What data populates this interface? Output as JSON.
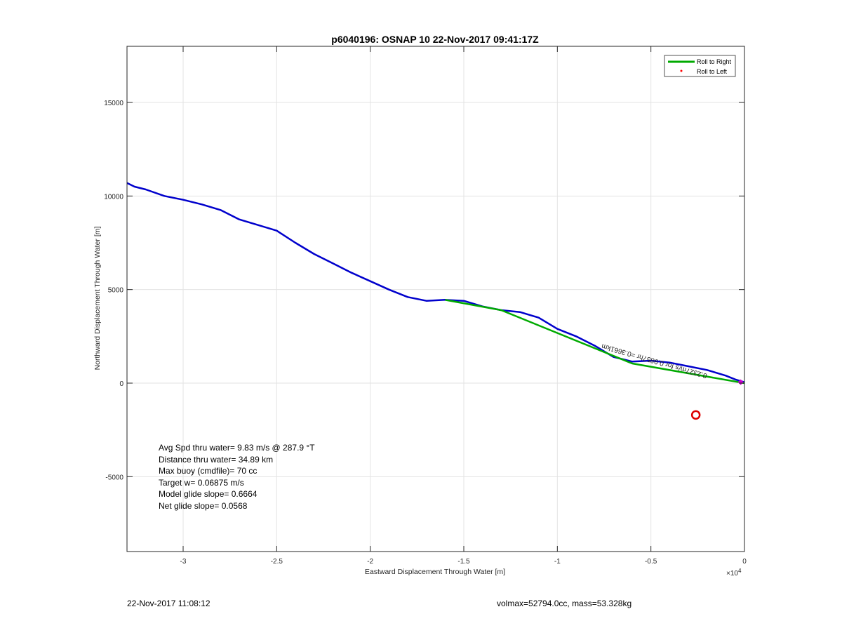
{
  "chart_data": {
    "type": "line",
    "title": "p6040196: OSNAP 10 22-Nov-2017 09:41:17Z",
    "xlabel": "Eastward Displacement Through Water [m]",
    "ylabel": "Northward Displacement Through Water [m]",
    "x_multiplier_label": "×10",
    "x_multiplier_exponent": "4",
    "xlim": [
      -33000,
      0
    ],
    "ylim": [
      -9000,
      18000
    ],
    "xticks": [
      -30000,
      -25000,
      -20000,
      -15000,
      -10000,
      -5000,
      0
    ],
    "xtick_labels": [
      "-3",
      "-2.5",
      "-2",
      "-1.5",
      "-1",
      "-0.5",
      "0"
    ],
    "yticks": [
      -5000,
      0,
      5000,
      10000,
      15000
    ],
    "ytick_labels": [
      "-5000",
      "0",
      "5000",
      "10000",
      "15000"
    ],
    "grid": true,
    "legend": {
      "position": "top-right",
      "entries": [
        {
          "label": "Roll to Right",
          "color": "#00aa00",
          "style": "line"
        },
        {
          "label": "Roll to Left",
          "color": "#ff0000",
          "style": "dot"
        }
      ]
    },
    "series": [
      {
        "color": "#0000cc",
        "points": [
          [
            -33000,
            10700
          ],
          [
            -32600,
            10500
          ],
          [
            -32000,
            10350
          ],
          [
            -31000,
            10000
          ],
          [
            -30000,
            9800
          ],
          [
            -29000,
            9550
          ],
          [
            -28000,
            9250
          ],
          [
            -27000,
            8750
          ],
          [
            -26000,
            8450
          ],
          [
            -25000,
            8150
          ],
          [
            -24000,
            7500
          ],
          [
            -23000,
            6900
          ],
          [
            -22000,
            6400
          ],
          [
            -21000,
            5900
          ],
          [
            -20000,
            5450
          ],
          [
            -19000,
            5000
          ],
          [
            -18000,
            4600
          ],
          [
            -17000,
            4400
          ],
          [
            -16000,
            4450
          ],
          [
            -15000,
            4400
          ],
          [
            -14000,
            4100
          ],
          [
            -13000,
            3900
          ],
          [
            -12000,
            3800
          ],
          [
            -11000,
            3500
          ],
          [
            -10000,
            2900
          ],
          [
            -9000,
            2500
          ],
          [
            -8000,
            2000
          ],
          [
            -7000,
            1400
          ],
          [
            -6000,
            1150
          ],
          [
            -5000,
            1200
          ],
          [
            -4000,
            1100
          ],
          [
            -3000,
            900
          ],
          [
            -2000,
            700
          ],
          [
            -1000,
            400
          ],
          [
            -500,
            200
          ],
          [
            0,
            50
          ]
        ]
      },
      {
        "color": "#00aa00",
        "points": [
          [
            -16000,
            4450
          ],
          [
            -13000,
            3900
          ],
          [
            -6000,
            1050
          ],
          [
            0,
            0
          ]
        ]
      }
    ],
    "markers": [
      {
        "x": -2600,
        "y": -1700,
        "shape": "circle",
        "color": "#dd0000"
      },
      {
        "x": -200,
        "y": 50,
        "shape": "diamond",
        "color": "#cc00cc"
      }
    ],
    "rotated_annotation": "0.2327m/s for 0.9857hr =0.3661km",
    "rotated_annotation_anchor": [
      -7600,
      2100
    ]
  },
  "stats": [
    "Avg Spd thru water=  9.83 m/s @ 287.9 °T",
    "Distance thru water= 34.89 km",
    "Max buoy (cmdfile)= 70 cc",
    "Target w= 0.06875 m/s",
    "Model glide slope= 0.6664",
    "Net glide slope= 0.0568"
  ],
  "footer": {
    "left": "22-Nov-2017 11:08:12",
    "right": "volmax=52794.0cc, mass=53.328kg"
  }
}
